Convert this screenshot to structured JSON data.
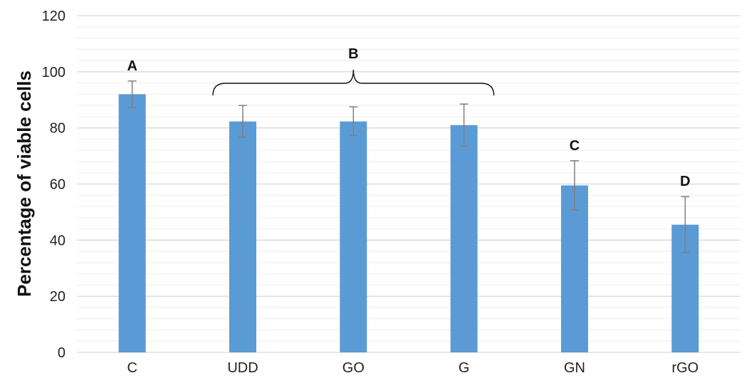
{
  "chart_data": {
    "type": "bar",
    "title": "",
    "xlabel": "",
    "ylabel": "Percentage of viable cells",
    "ylim": [
      0,
      120
    ],
    "yticks": [
      0,
      20,
      40,
      60,
      80,
      100,
      120
    ],
    "minor_grid_step": 4,
    "grid": true,
    "categories": [
      "C",
      "UDD",
      "GO",
      "G",
      "GN",
      "rGO"
    ],
    "values": [
      92,
      82.3,
      82.3,
      81,
      59.5,
      45.5
    ],
    "error_low": [
      87.3,
      76.7,
      77.3,
      73.5,
      50.8,
      35.5
    ],
    "error_high": [
      96.7,
      88,
      87.5,
      88.5,
      68.3,
      55.5
    ],
    "bar_color": "#5b9bd5",
    "error_color": "#7f7f7f",
    "grid_color": "#d9d9d9",
    "annotations": [
      {
        "text": "A",
        "category": "C"
      },
      {
        "text": "B",
        "categories": [
          "UDD",
          "GO",
          "G"
        ],
        "bracket": true
      },
      {
        "text": "C",
        "category": "GN"
      },
      {
        "text": "D",
        "category": "rGO"
      }
    ]
  }
}
